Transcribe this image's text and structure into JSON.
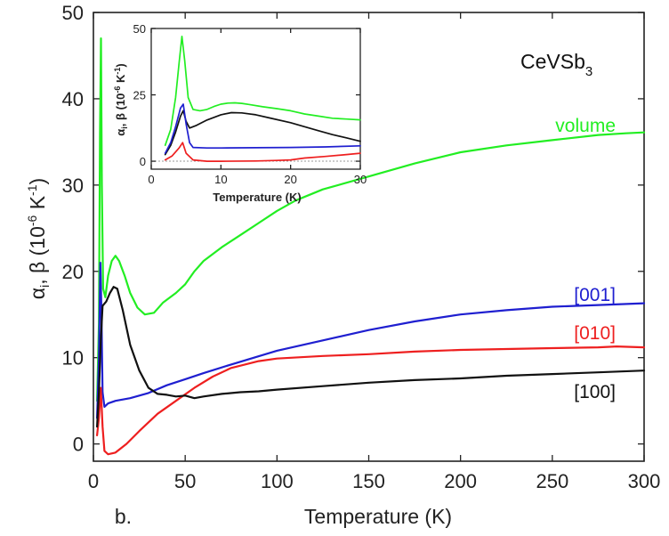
{
  "chart_data": [
    {
      "type": "line",
      "xlabel": "Temperature (K)",
      "ylabel_parts": [
        "α",
        "i",
        ", β (10",
        "-6",
        " K",
        "-1",
        ")"
      ],
      "xlim": [
        0,
        300
      ],
      "ylim": [
        -2,
        50
      ],
      "xticks": [
        0,
        50,
        100,
        150,
        200,
        250,
        300
      ],
      "yticks": [
        0,
        10,
        20,
        30,
        40,
        50
      ],
      "annotation_main": "CeVSb",
      "annotation_sub": "3",
      "panel_label": "b.",
      "series": [
        {
          "name": "volume",
          "color": "#22ee22",
          "points": [
            [
              2,
              5
            ],
            [
              3,
              14
            ],
            [
              3.6,
              36
            ],
            [
              4.1,
              47
            ],
            [
              4.6,
              30
            ],
            [
              5.3,
              18
            ],
            [
              6.5,
              17
            ],
            [
              8,
              19.5
            ],
            [
              10,
              21.2
            ],
            [
              12,
              21.8
            ],
            [
              14,
              21.2
            ],
            [
              17,
              19.5
            ],
            [
              20,
              17.5
            ],
            [
              24,
              15.8
            ],
            [
              28,
              15
            ],
            [
              33,
              15.2
            ],
            [
              38,
              16.4
            ],
            [
              45,
              17.5
            ],
            [
              50,
              18.5
            ],
            [
              55,
              20
            ],
            [
              60,
              21.2
            ],
            [
              70,
              22.8
            ],
            [
              80,
              24.2
            ],
            [
              90,
              25.6
            ],
            [
              100,
              27
            ],
            [
              110,
              28.2
            ],
            [
              125,
              29.5
            ],
            [
              150,
              31
            ],
            [
              175,
              32.5
            ],
            [
              200,
              33.8
            ],
            [
              225,
              34.6
            ],
            [
              250,
              35.2
            ],
            [
              275,
              35.8
            ],
            [
              290,
              36
            ],
            [
              300,
              36.1
            ]
          ]
        },
        {
          "name": "[001]",
          "color": "#1f1fd0",
          "points": [
            [
              2,
              3
            ],
            [
              3,
              10
            ],
            [
              3.8,
              21
            ],
            [
              4.3,
              16
            ],
            [
              5,
              6
            ],
            [
              6,
              4.3
            ],
            [
              8,
              4.7
            ],
            [
              12,
              5
            ],
            [
              20,
              5.3
            ],
            [
              30,
              5.9
            ],
            [
              40,
              6.8
            ],
            [
              50,
              7.5
            ],
            [
              60,
              8.2
            ],
            [
              75,
              9.2
            ],
            [
              100,
              10.8
            ],
            [
              125,
              12
            ],
            [
              150,
              13.2
            ],
            [
              175,
              14.2
            ],
            [
              200,
              15
            ],
            [
              225,
              15.5
            ],
            [
              250,
              15.9
            ],
            [
              275,
              16.1
            ],
            [
              300,
              16.3
            ]
          ]
        },
        {
          "name": "[010]",
          "color": "#ee1f1f",
          "points": [
            [
              2,
              1
            ],
            [
              3,
              3
            ],
            [
              4,
              6.5
            ],
            [
              5,
              2
            ],
            [
              6,
              -0.8
            ],
            [
              8,
              -1.2
            ],
            [
              12,
              -1
            ],
            [
              18,
              0
            ],
            [
              25,
              1.5
            ],
            [
              35,
              3.5
            ],
            [
              45,
              5
            ],
            [
              55,
              6.5
            ],
            [
              65,
              7.8
            ],
            [
              75,
              8.8
            ],
            [
              90,
              9.6
            ],
            [
              100,
              9.9
            ],
            [
              125,
              10.2
            ],
            [
              150,
              10.4
            ],
            [
              175,
              10.7
            ],
            [
              200,
              10.9
            ],
            [
              225,
              11
            ],
            [
              250,
              11.1
            ],
            [
              275,
              11.2
            ],
            [
              285,
              11.3
            ],
            [
              300,
              11.2
            ]
          ]
        },
        {
          "name": "[100]",
          "color": "#111111",
          "points": [
            [
              2,
              2
            ],
            [
              3,
              6
            ],
            [
              4,
              12
            ],
            [
              5,
              16
            ],
            [
              7,
              16.5
            ],
            [
              9,
              17.5
            ],
            [
              11,
              18.2
            ],
            [
              13,
              18
            ],
            [
              16,
              15.5
            ],
            [
              20,
              11.5
            ],
            [
              25,
              8.5
            ],
            [
              30,
              6.5
            ],
            [
              35,
              5.8
            ],
            [
              40,
              5.7
            ],
            [
              45,
              5.5
            ],
            [
              50,
              5.6
            ],
            [
              55,
              5.3
            ],
            [
              60,
              5.5
            ],
            [
              70,
              5.8
            ],
            [
              80,
              6
            ],
            [
              90,
              6.1
            ],
            [
              100,
              6.3
            ],
            [
              125,
              6.7
            ],
            [
              150,
              7.1
            ],
            [
              175,
              7.4
            ],
            [
              200,
              7.6
            ],
            [
              225,
              7.9
            ],
            [
              250,
              8.1
            ],
            [
              275,
              8.3
            ],
            [
              300,
              8.5
            ]
          ]
        }
      ]
    },
    {
      "type": "line",
      "xlabel": "Temperature (K)",
      "ylabel_parts": [
        "α",
        "i",
        ", β (10",
        "-6",
        " K",
        "-1",
        ")"
      ],
      "xlim": [
        0,
        30
      ],
      "ylim": [
        -3,
        50
      ],
      "xticks": [
        0,
        10,
        20,
        30
      ],
      "yticks": [
        0,
        25,
        50
      ],
      "zero_line": true,
      "series": [
        {
          "name": "volume",
          "color": "#22ee22",
          "points": [
            [
              2,
              6
            ],
            [
              2.8,
              12
            ],
            [
              3.5,
              24
            ],
            [
              4,
              37
            ],
            [
              4.4,
              47
            ],
            [
              4.8,
              38
            ],
            [
              5.3,
              24
            ],
            [
              6,
              19.5
            ],
            [
              7,
              19
            ],
            [
              8,
              19.5
            ],
            [
              9,
              20.6
            ],
            [
              10,
              21.5
            ],
            [
              11,
              21.9
            ],
            [
              12,
              22
            ],
            [
              13,
              21.8
            ],
            [
              14,
              21.4
            ],
            [
              16,
              20.5
            ],
            [
              18,
              19.8
            ],
            [
              20,
              19
            ],
            [
              22,
              17.8
            ],
            [
              24,
              17
            ],
            [
              26,
              16.2
            ],
            [
              28,
              15.9
            ],
            [
              30,
              15.6
            ]
          ]
        },
        {
          "name": "[100]",
          "color": "#111111",
          "points": [
            [
              2,
              2.5
            ],
            [
              2.8,
              6
            ],
            [
              3.5,
              11
            ],
            [
              4.2,
              17
            ],
            [
              4.6,
              19
            ],
            [
              5,
              15
            ],
            [
              5.5,
              12.5
            ],
            [
              6.5,
              13.5
            ],
            [
              8,
              15.5
            ],
            [
              10,
              17.5
            ],
            [
              11.5,
              18.3
            ],
            [
              13,
              18.2
            ],
            [
              15,
              17.5
            ],
            [
              17,
              16.3
            ],
            [
              20,
              14.5
            ],
            [
              22,
              13
            ],
            [
              24,
              11.5
            ],
            [
              26,
              10
            ],
            [
              28,
              8.8
            ],
            [
              30,
              7.5
            ]
          ]
        },
        {
          "name": "[001]",
          "color": "#1f1fd0",
          "points": [
            [
              2,
              3
            ],
            [
              2.8,
              7
            ],
            [
              3.5,
              13
            ],
            [
              4.2,
              20
            ],
            [
              4.6,
              21.5
            ],
            [
              5,
              14
            ],
            [
              5.5,
              7
            ],
            [
              6,
              5.2
            ],
            [
              8,
              5
            ],
            [
              10,
              5
            ],
            [
              15,
              5.1
            ],
            [
              20,
              5.2
            ],
            [
              25,
              5.4
            ],
            [
              30,
              5.8
            ]
          ]
        },
        {
          "name": "[010]",
          "color": "#ee1f1f",
          "points": [
            [
              2,
              0.5
            ],
            [
              3,
              2
            ],
            [
              4,
              5
            ],
            [
              4.5,
              7
            ],
            [
              5,
              3
            ],
            [
              6,
              0.5
            ],
            [
              8,
              0
            ],
            [
              10,
              0
            ],
            [
              15,
              0.1
            ],
            [
              18,
              0.3
            ],
            [
              20,
              0.5
            ],
            [
              22,
              1.2
            ],
            [
              25,
              1.8
            ],
            [
              28,
              2.5
            ],
            [
              30,
              3
            ]
          ]
        }
      ]
    }
  ]
}
